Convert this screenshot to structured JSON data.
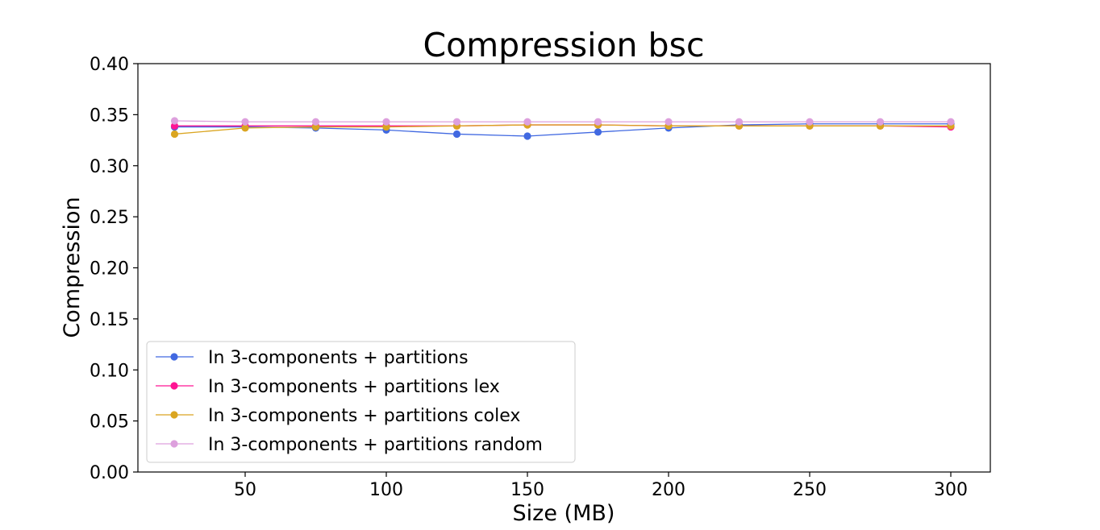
{
  "chart_data": {
    "type": "line",
    "title": "Compression bsc",
    "xlabel": "Size (MB)",
    "ylabel": "Compression",
    "xlim": [
      12,
      314
    ],
    "ylim": [
      0,
      0.4
    ],
    "xticks": [
      50,
      100,
      150,
      200,
      250,
      300
    ],
    "yticks": [
      0.0,
      0.05,
      0.1,
      0.15,
      0.2,
      0.25,
      0.3,
      0.35,
      0.4
    ],
    "xtick_labels": [
      "50",
      "100",
      "150",
      "200",
      "250",
      "300"
    ],
    "ytick_labels": [
      "0.00",
      "0.05",
      "0.10",
      "0.15",
      "0.20",
      "0.25",
      "0.30",
      "0.35",
      "0.40"
    ],
    "grid": false,
    "legend_position": "lower-left",
    "x": [
      25,
      50,
      75,
      100,
      125,
      150,
      175,
      200,
      225,
      250,
      275,
      300
    ],
    "series": [
      {
        "name": "In 3-components + partitions",
        "color": "#4169e1",
        "values": [
          0.338,
          0.338,
          0.337,
          0.335,
          0.331,
          0.329,
          0.333,
          0.337,
          0.34,
          0.341,
          0.341,
          0.341
        ]
      },
      {
        "name": "In 3-components + partitions lex",
        "color": "#ff1493",
        "values": [
          0.339,
          0.339,
          0.339,
          0.339,
          0.339,
          0.34,
          0.34,
          0.339,
          0.339,
          0.339,
          0.339,
          0.338
        ]
      },
      {
        "name": "In 3-components + partitions colex",
        "color": "#daa520",
        "values": [
          0.331,
          0.337,
          0.338,
          0.338,
          0.339,
          0.34,
          0.34,
          0.339,
          0.339,
          0.339,
          0.339,
          0.339
        ]
      },
      {
        "name": "In 3-components + partitions random",
        "color": "#dda0dd",
        "values": [
          0.344,
          0.343,
          0.343,
          0.343,
          0.343,
          0.343,
          0.343,
          0.343,
          0.343,
          0.343,
          0.343,
          0.343
        ]
      }
    ]
  }
}
